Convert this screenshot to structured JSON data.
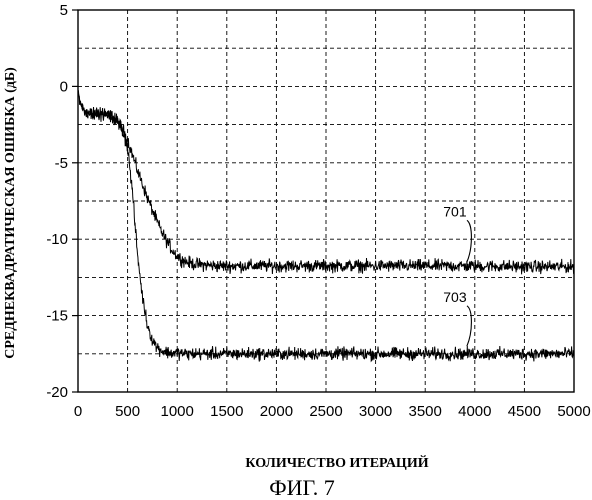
{
  "chart_data": {
    "type": "line",
    "title": "",
    "xlabel": "КОЛИЧЕСТВО ИТЕРАЦИЙ",
    "ylabel": "СРЕДНЕКВАДРАТИЧЕСКАЯ ОШИБКА (дБ)",
    "caption": "ФИГ. 7",
    "xlim": [
      0,
      5000
    ],
    "ylim": [
      -20,
      5
    ],
    "xticks": [
      0,
      500,
      1000,
      1500,
      2000,
      2500,
      3000,
      3500,
      4000,
      4500,
      5000
    ],
    "yticks": [
      5,
      0,
      -5,
      -10,
      -15,
      -20
    ],
    "grid": true,
    "grid_style": "dashed",
    "legend": "none",
    "colors": {
      "line": "#000000",
      "grid": "#000000",
      "background": "#ffffff"
    },
    "series": [
      {
        "name": "701",
        "noise_db": 0.35,
        "x": [
          0,
          20,
          50,
          100,
          150,
          200,
          250,
          300,
          350,
          400,
          450,
          500,
          550,
          600,
          650,
          700,
          750,
          800,
          850,
          900,
          950,
          1000,
          1050,
          1100,
          1150,
          1200,
          1300,
          1400,
          1500,
          1700,
          2000,
          2500,
          3000,
          3500,
          4000,
          4500,
          5000
        ],
        "y": [
          -0.5,
          -1.0,
          -1.5,
          -1.7,
          -1.8,
          -1.8,
          -1.8,
          -1.9,
          -2.0,
          -2.3,
          -2.8,
          -3.5,
          -4.5,
          -5.5,
          -6.4,
          -7.3,
          -8.1,
          -8.9,
          -9.6,
          -10.2,
          -10.7,
          -11.1,
          -11.35,
          -11.5,
          -11.6,
          -11.65,
          -11.7,
          -11.75,
          -11.75,
          -11.75,
          -11.75,
          -11.75,
          -11.75,
          -11.75,
          -11.75,
          -11.8,
          -11.8
        ]
      },
      {
        "name": "703",
        "noise_db": 0.35,
        "x": [
          0,
          20,
          50,
          100,
          150,
          200,
          250,
          300,
          350,
          400,
          450,
          500,
          550,
          600,
          650,
          700,
          750,
          800,
          850,
          900,
          950,
          1000,
          1100,
          1200,
          1500,
          2000,
          2500,
          3000,
          3500,
          4000,
          4500,
          5000
        ],
        "y": [
          -0.5,
          -1.0,
          -1.5,
          -1.7,
          -1.8,
          -1.8,
          -1.8,
          -1.9,
          -2.0,
          -2.3,
          -2.9,
          -4.0,
          -7.0,
          -11.0,
          -13.8,
          -15.6,
          -16.6,
          -17.1,
          -17.3,
          -17.4,
          -17.45,
          -17.45,
          -17.5,
          -17.5,
          -17.5,
          -17.5,
          -17.5,
          -17.5,
          -17.5,
          -17.5,
          -17.5,
          -17.5
        ]
      }
    ]
  }
}
